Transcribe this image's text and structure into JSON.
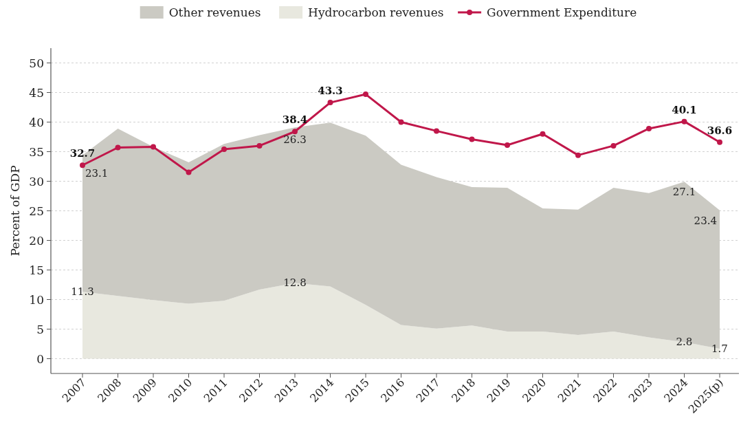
{
  "chart_data": {
    "type": "area",
    "stacked": true,
    "ylabel": "Percent of GDP",
    "categories": [
      "2007",
      "2008",
      "2009",
      "2010",
      "2011",
      "2012",
      "2013",
      "2014",
      "2015",
      "2016",
      "2017",
      "2018",
      "2019",
      "2020",
      "2021",
      "2022",
      "2023",
      "2024",
      "2025(p)"
    ],
    "series": [
      {
        "name": "Hydrocarbon revenues",
        "color": "#e8e8df",
        "values": [
          11.3,
          10.6,
          9.9,
          9.3,
          9.8,
          11.7,
          12.8,
          12.2,
          9.1,
          5.7,
          5.1,
          5.6,
          4.6,
          4.6,
          4.0,
          4.6,
          3.6,
          2.8,
          1.7
        ],
        "value_labels": [
          "11.3",
          null,
          null,
          null,
          null,
          null,
          "12.8",
          null,
          null,
          null,
          null,
          null,
          null,
          null,
          null,
          null,
          null,
          "2.8",
          "1.7"
        ]
      },
      {
        "name": "Other revenues",
        "color": "#cbcac3",
        "values": [
          23.1,
          28.3,
          25.9,
          23.9,
          26.5,
          26.1,
          26.3,
          27.7,
          28.6,
          27.1,
          25.6,
          23.4,
          24.3,
          20.8,
          21.2,
          24.3,
          24.4,
          27.1,
          23.4
        ],
        "value_labels": [
          "23.1",
          null,
          null,
          null,
          null,
          null,
          "26.3",
          null,
          null,
          null,
          null,
          null,
          null,
          null,
          null,
          null,
          null,
          "27.1",
          "23.4"
        ]
      },
      {
        "name": "Government Expenditure",
        "type": "line",
        "marker": "circle",
        "color": "#c0174a",
        "values": [
          32.7,
          35.7,
          35.8,
          31.5,
          35.4,
          36.0,
          38.4,
          43.3,
          44.7,
          40.0,
          38.5,
          37.1,
          36.1,
          38.0,
          34.4,
          36.0,
          38.9,
          40.1,
          36.6
        ],
        "value_labels": [
          "32.7",
          null,
          null,
          null,
          null,
          null,
          "38.4",
          "43.3",
          null,
          null,
          null,
          null,
          null,
          null,
          null,
          null,
          null,
          "40.1",
          "36.6"
        ]
      }
    ],
    "ylim": [
      -2.5,
      52.5
    ],
    "yticks": [
      0,
      5,
      10,
      15,
      20,
      25,
      30,
      35,
      40,
      45,
      50
    ],
    "grid": "y",
    "legend": "top",
    "line_style": "solid"
  }
}
